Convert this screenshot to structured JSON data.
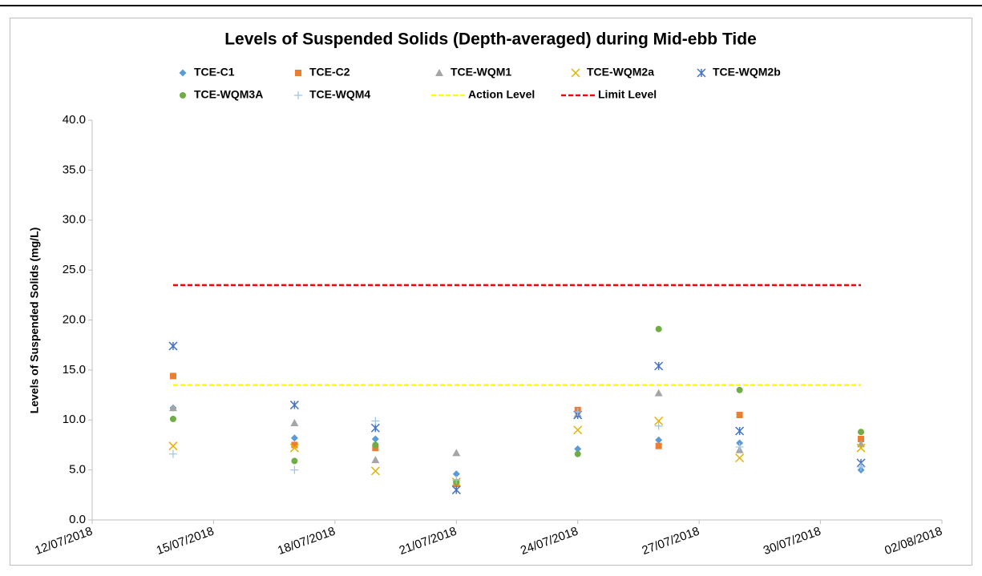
{
  "chart_data": {
    "type": "scatter",
    "title": "Levels of Suspended Solids (Depth-averaged) during Mid-ebb Tide",
    "y_label": "Levels of Suspended Solids (mg/L)",
    "x": [
      "14/07/2018",
      "17/07/2018",
      "19/07/2018",
      "21/07/2018",
      "24/07/2018",
      "26/07/2018",
      "28/07/2018",
      "31/07/2018"
    ],
    "series": [
      {
        "name": "TCE-C1",
        "color": "#5b9bd5",
        "marker": "diamond",
        "values": [
          11.2,
          8.2,
          8.1,
          4.6,
          7.1,
          8.0,
          7.7,
          5.0
        ]
      },
      {
        "name": "TCE-C2",
        "color": "#ed7d31",
        "marker": "square",
        "values": [
          14.4,
          7.5,
          7.2,
          3.6,
          11.0,
          7.4,
          10.5,
          8.1
        ]
      },
      {
        "name": "TCE-WQM1",
        "color": "#a5a5a5",
        "marker": "triangle",
        "values": [
          11.2,
          9.7,
          6.0,
          6.7,
          10.6,
          12.7,
          7.0,
          7.6
        ]
      },
      {
        "name": "TCE-WQM2a",
        "color": "#e5b200",
        "marker": "x",
        "values": [
          7.4,
          7.2,
          4.9,
          3.8,
          9.0,
          9.9,
          6.2,
          7.2
        ]
      },
      {
        "name": "TCE-WQM2b",
        "color": "#4472c4",
        "marker": "star",
        "values": [
          17.4,
          11.5,
          9.2,
          3.0,
          10.5,
          15.4,
          8.9,
          5.7
        ]
      },
      {
        "name": "TCE-WQM3A",
        "color": "#70ad47",
        "marker": "circle",
        "values": [
          10.1,
          5.9,
          7.5,
          3.8,
          6.6,
          19.1,
          13.0,
          8.8
        ]
      },
      {
        "name": "TCE-WQM4",
        "color": "#9dc3e6",
        "marker": "plus",
        "values": [
          6.6,
          5.0,
          9.9,
          4.0,
          10.8,
          9.4,
          7.3,
          5.3
        ]
      },
      {
        "name": "Action Level",
        "color": "#ffff00",
        "marker": "dash",
        "x": [
          "14/07/2018",
          "31/07/2018"
        ],
        "values": [
          13.5,
          13.5
        ]
      },
      {
        "name": "Limit Level",
        "color": "#ff0000",
        "marker": "dash",
        "x": [
          "14/07/2018",
          "31/07/2018"
        ],
        "values": [
          23.5,
          23.5
        ]
      }
    ],
    "xlim": [
      "12/07/2018",
      "02/08/2018"
    ],
    "xticks": [
      "12/07/2018",
      "15/07/2018",
      "18/07/2018",
      "21/07/2018",
      "24/07/2018",
      "27/07/2018",
      "30/07/2018",
      "02/08/2018"
    ],
    "ylim": [
      0,
      40
    ],
    "yticks": [
      {
        "value": 0,
        "label": "0.0"
      },
      {
        "value": 5,
        "label": "5.0"
      },
      {
        "value": 10,
        "label": "10.0"
      },
      {
        "value": 15,
        "label": "15.0"
      },
      {
        "value": 20,
        "label": "20.0"
      },
      {
        "value": 25,
        "label": "25.0"
      },
      {
        "value": 30,
        "label": "30.0"
      },
      {
        "value": 35,
        "label": "35.0"
      },
      {
        "value": 40,
        "label": "40.0"
      }
    ],
    "grid": false
  }
}
